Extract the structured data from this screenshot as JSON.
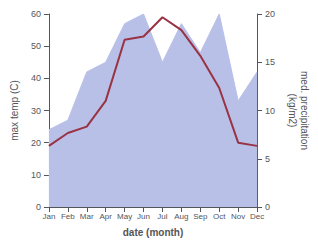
{
  "chart_data": {
    "type": "line",
    "categories": [
      "Jan",
      "Feb",
      "Mar",
      "Apr",
      "May",
      "Jun",
      "Jul",
      "Aug",
      "Sep",
      "Oct",
      "Nov",
      "Dec"
    ],
    "series": [
      {
        "type": "area",
        "color": "#b8c0e8",
        "axis": "y2",
        "values": [
          8,
          9,
          14,
          15,
          19,
          20,
          15,
          19,
          16,
          20,
          11,
          14
        ]
      },
      {
        "type": "line",
        "color": "#993344",
        "values": [
          19,
          23,
          25,
          33,
          52,
          53,
          59,
          55,
          47,
          37,
          20,
          19
        ]
      }
    ],
    "xlabel": "date (month)",
    "ylabel": "max temp (C)",
    "y2label": "med. precipitation\n(kg/m2)",
    "ylim": [
      0,
      60
    ],
    "yticks": [
      0,
      10,
      20,
      30,
      40,
      50,
      60
    ],
    "y2lim": [
      0,
      20
    ],
    "y2ticks": [
      0,
      5,
      10,
      15,
      20
    ],
    "grid": false
  }
}
